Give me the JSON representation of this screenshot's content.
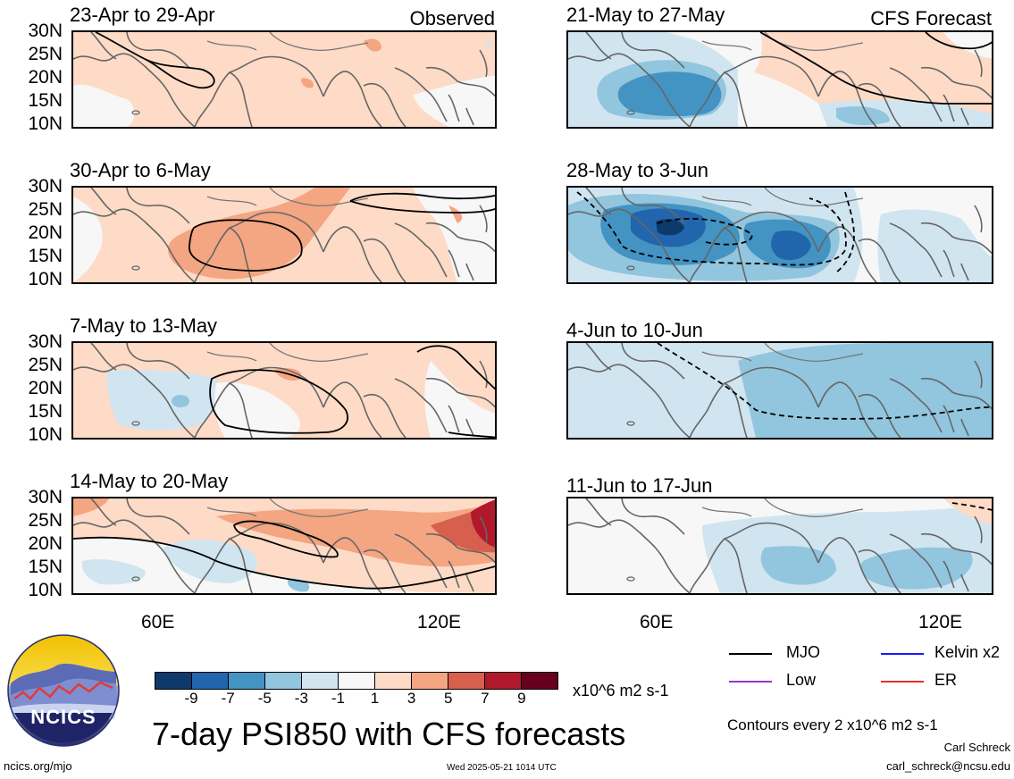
{
  "panels": {
    "p1": {
      "title": "23-Apr to 29-Apr",
      "corner": "Observed"
    },
    "p2": {
      "title": "30-Apr to 6-May"
    },
    "p3": {
      "title": "7-May to 13-May"
    },
    "p4": {
      "title": "14-May to 20-May"
    },
    "p5": {
      "title": "21-May to 27-May",
      "corner": "CFS Forecast"
    },
    "p6": {
      "title": "28-May to 3-Jun"
    },
    "p7": {
      "title": "4-Jun to 10-Jun"
    },
    "p8": {
      "title": "11-Jun to 17-Jun"
    }
  },
  "axes": {
    "lat_labels": [
      "30N",
      "25N",
      "20N",
      "15N",
      "10N"
    ],
    "lon_labels": [
      "60E",
      "120E"
    ]
  },
  "colorbar": {
    "colors": [
      "#0d3a6b",
      "#2166ac",
      "#4393c3",
      "#92c5de",
      "#d1e5f0",
      "#f7f7f7",
      "#fddbc7",
      "#f4a582",
      "#d6604d",
      "#b2182b",
      "#67001f"
    ],
    "labels": [
      "-9",
      "-7",
      "-5",
      "-3",
      "-1",
      "1",
      "3",
      "5",
      "7",
      "9"
    ],
    "units": "x10^6 m2 s-1"
  },
  "legend": {
    "mjo": {
      "label": "MJO",
      "color": "#000000"
    },
    "kelvin": {
      "label": "Kelvin x2",
      "color": "#1a1aff"
    },
    "low": {
      "label": "Low",
      "color": "#9933cc"
    },
    "er": {
      "label": "ER",
      "color": "#e62e2e"
    }
  },
  "logo_text": "NCICS",
  "main_title": "7-day PSI850 with CFS forecasts",
  "contour_note": "Contours every 2 x10^6 m2 s-1",
  "author": "Carl Schreck",
  "email": "carl_schreck@ncsu.edu",
  "url": "ncics.org/mjo",
  "timestamp": "Wed 2025-05-21 1014 UTC"
}
